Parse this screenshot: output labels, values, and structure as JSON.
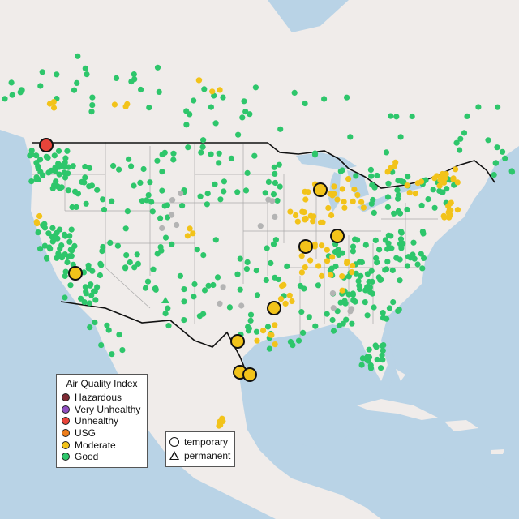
{
  "legend": {
    "title": "Air Quality Index",
    "categories": [
      {
        "label": "Hazardous",
        "color": "#7e2a33"
      },
      {
        "label": "Very Unhealthy",
        "color": "#8f4fc0"
      },
      {
        "label": "Unhealthy",
        "color": "#e8443a"
      },
      {
        "label": "USG",
        "color": "#ee7e1c"
      },
      {
        "label": "Moderate",
        "color": "#f2c31a"
      },
      {
        "label": "Good",
        "color": "#2ec66b"
      }
    ]
  },
  "monitor_types": [
    {
      "label": "temporary",
      "shape": "circle"
    },
    {
      "label": "permanent",
      "shape": "triangle"
    }
  ],
  "colors": {
    "land": "#f0ecea",
    "water": "#b9d3e6",
    "good": "#2ec66b",
    "moderate": "#f2c31a",
    "unhealthy": "#e8443a",
    "no_data": "#b4b4b4"
  }
}
